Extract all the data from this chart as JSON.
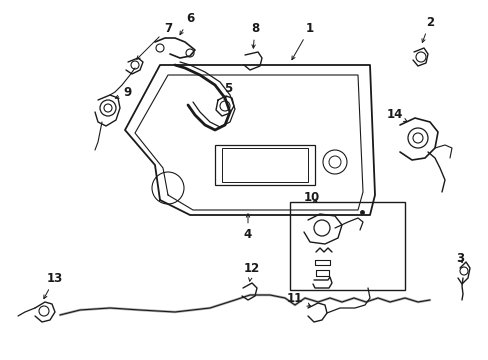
{
  "background_color": "#ffffff",
  "line_color": "#1a1a1a",
  "line_width": 1.0,
  "font_size": 8.5,
  "font_weight": "bold",
  "arrow_color": "#1a1a1a"
}
